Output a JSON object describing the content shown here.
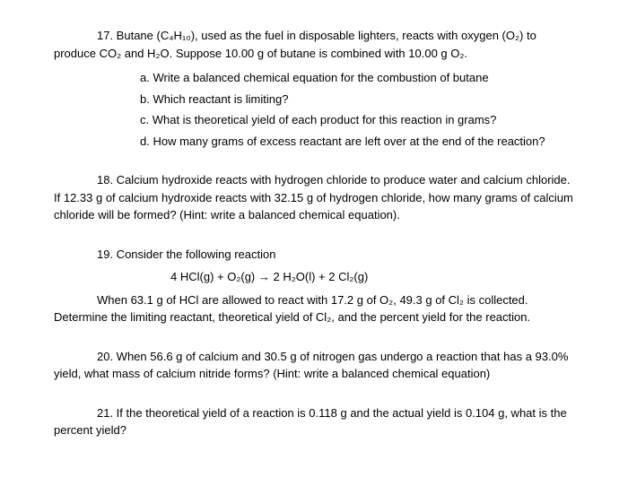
{
  "q17": {
    "intro": "17. Butane (C₄H₁₀), used as the fuel in disposable lighters, reacts with oxygen (O₂) to produce CO₂ and H₂O.  Suppose 10.00 g of butane is combined with 10.00 g O₂.",
    "a": "a.   Write a balanced chemical equation for the combustion of butane",
    "b": "b. Which reactant is limiting?",
    "c": "c. What is theoretical yield of each product for this reaction in grams?",
    "d": "d. How many grams of excess reactant are left over at the end of the reaction?"
  },
  "q18": {
    "text": "18. Calcium hydroxide reacts with hydrogen chloride to produce water and calcium chloride. If 12.33 g of calcium hydroxide reacts with 32.15 g of hydrogen chloride, how many grams of calcium chloride will be formed? (Hint: write a balanced chemical equation)."
  },
  "q19": {
    "intro": "19. Consider the following reaction",
    "equation": "4 HCl(g) + O₂(g) → 2 H₂O(l) + 2 Cl₂(g)",
    "body": "When 63.1 g of HCl are allowed to react with 17.2 g of O₂, 49.3 g of Cl₂ is collected. Determine the limiting reactant, theoretical yield of Cl₂, and the percent yield for the reaction."
  },
  "q20": {
    "text": "20. When 56.6 g of calcium and 30.5 g of nitrogen gas undergo a reaction that has a 93.0% yield, what mass of calcium nitride forms? (Hint: write a balanced chemical equation)"
  },
  "q21": {
    "text": "21. If the theoretical yield of a reaction is 0.118 g and the actual yield is 0.104 g, what is the percent yield?"
  }
}
